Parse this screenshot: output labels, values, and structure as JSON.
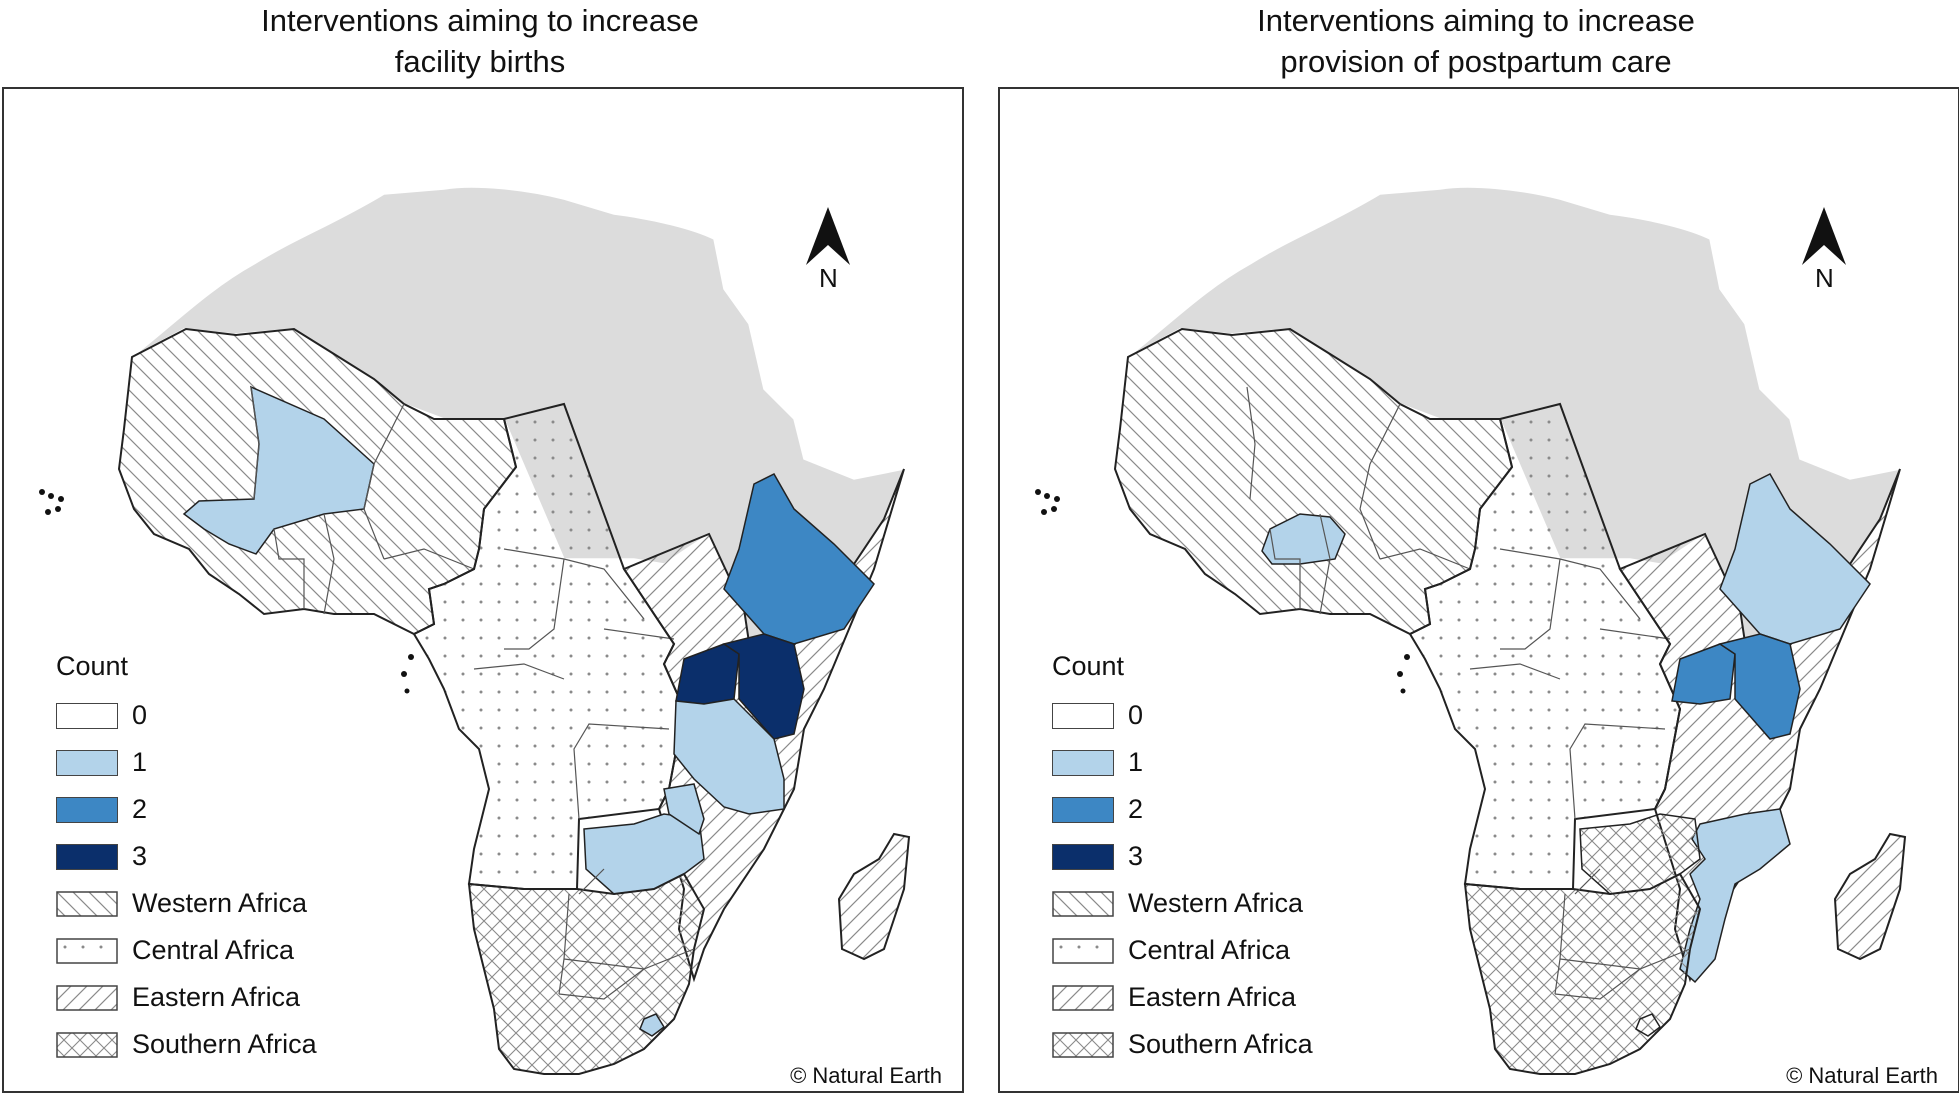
{
  "panels": [
    {
      "title_line1": "Interventions aiming to increase",
      "title_line2": "facility births",
      "counts": {
        "Mali": 1,
        "Ethiopia": 2,
        "Uganda": 3,
        "Kenya": 3,
        "Tanzania": 1,
        "Malawi": 1,
        "Zambia": 1,
        "Lesotho": 1
      }
    },
    {
      "title_line1": "Interventions aiming to increase",
      "title_line2": "provision of postpartum care",
      "counts": {
        "Burkina Faso": 1,
        "Ethiopia": 1,
        "Uganda": 2,
        "Kenya": 2,
        "Mozambique": 1
      }
    }
  ],
  "north_label": "N",
  "legend": {
    "title": "Count",
    "counts": [
      {
        "label": "0",
        "color": "#ffffff"
      },
      {
        "label": "1",
        "color": "#b3d3ea"
      },
      {
        "label": "2",
        "color": "#3d87c4"
      },
      {
        "label": "3",
        "color": "#0b2f6b"
      }
    ],
    "regions": [
      {
        "label": "Western Africa",
        "pattern": "back-diagonal"
      },
      {
        "label": "Central Africa",
        "pattern": "dots"
      },
      {
        "label": "Eastern Africa",
        "pattern": "diagonal"
      },
      {
        "label": "Southern Africa",
        "pattern": "crosshatch"
      }
    ]
  },
  "credit": "© Natural Earth",
  "colors": {
    "non_ssa": "#dcdcdc",
    "border": "#222222"
  }
}
